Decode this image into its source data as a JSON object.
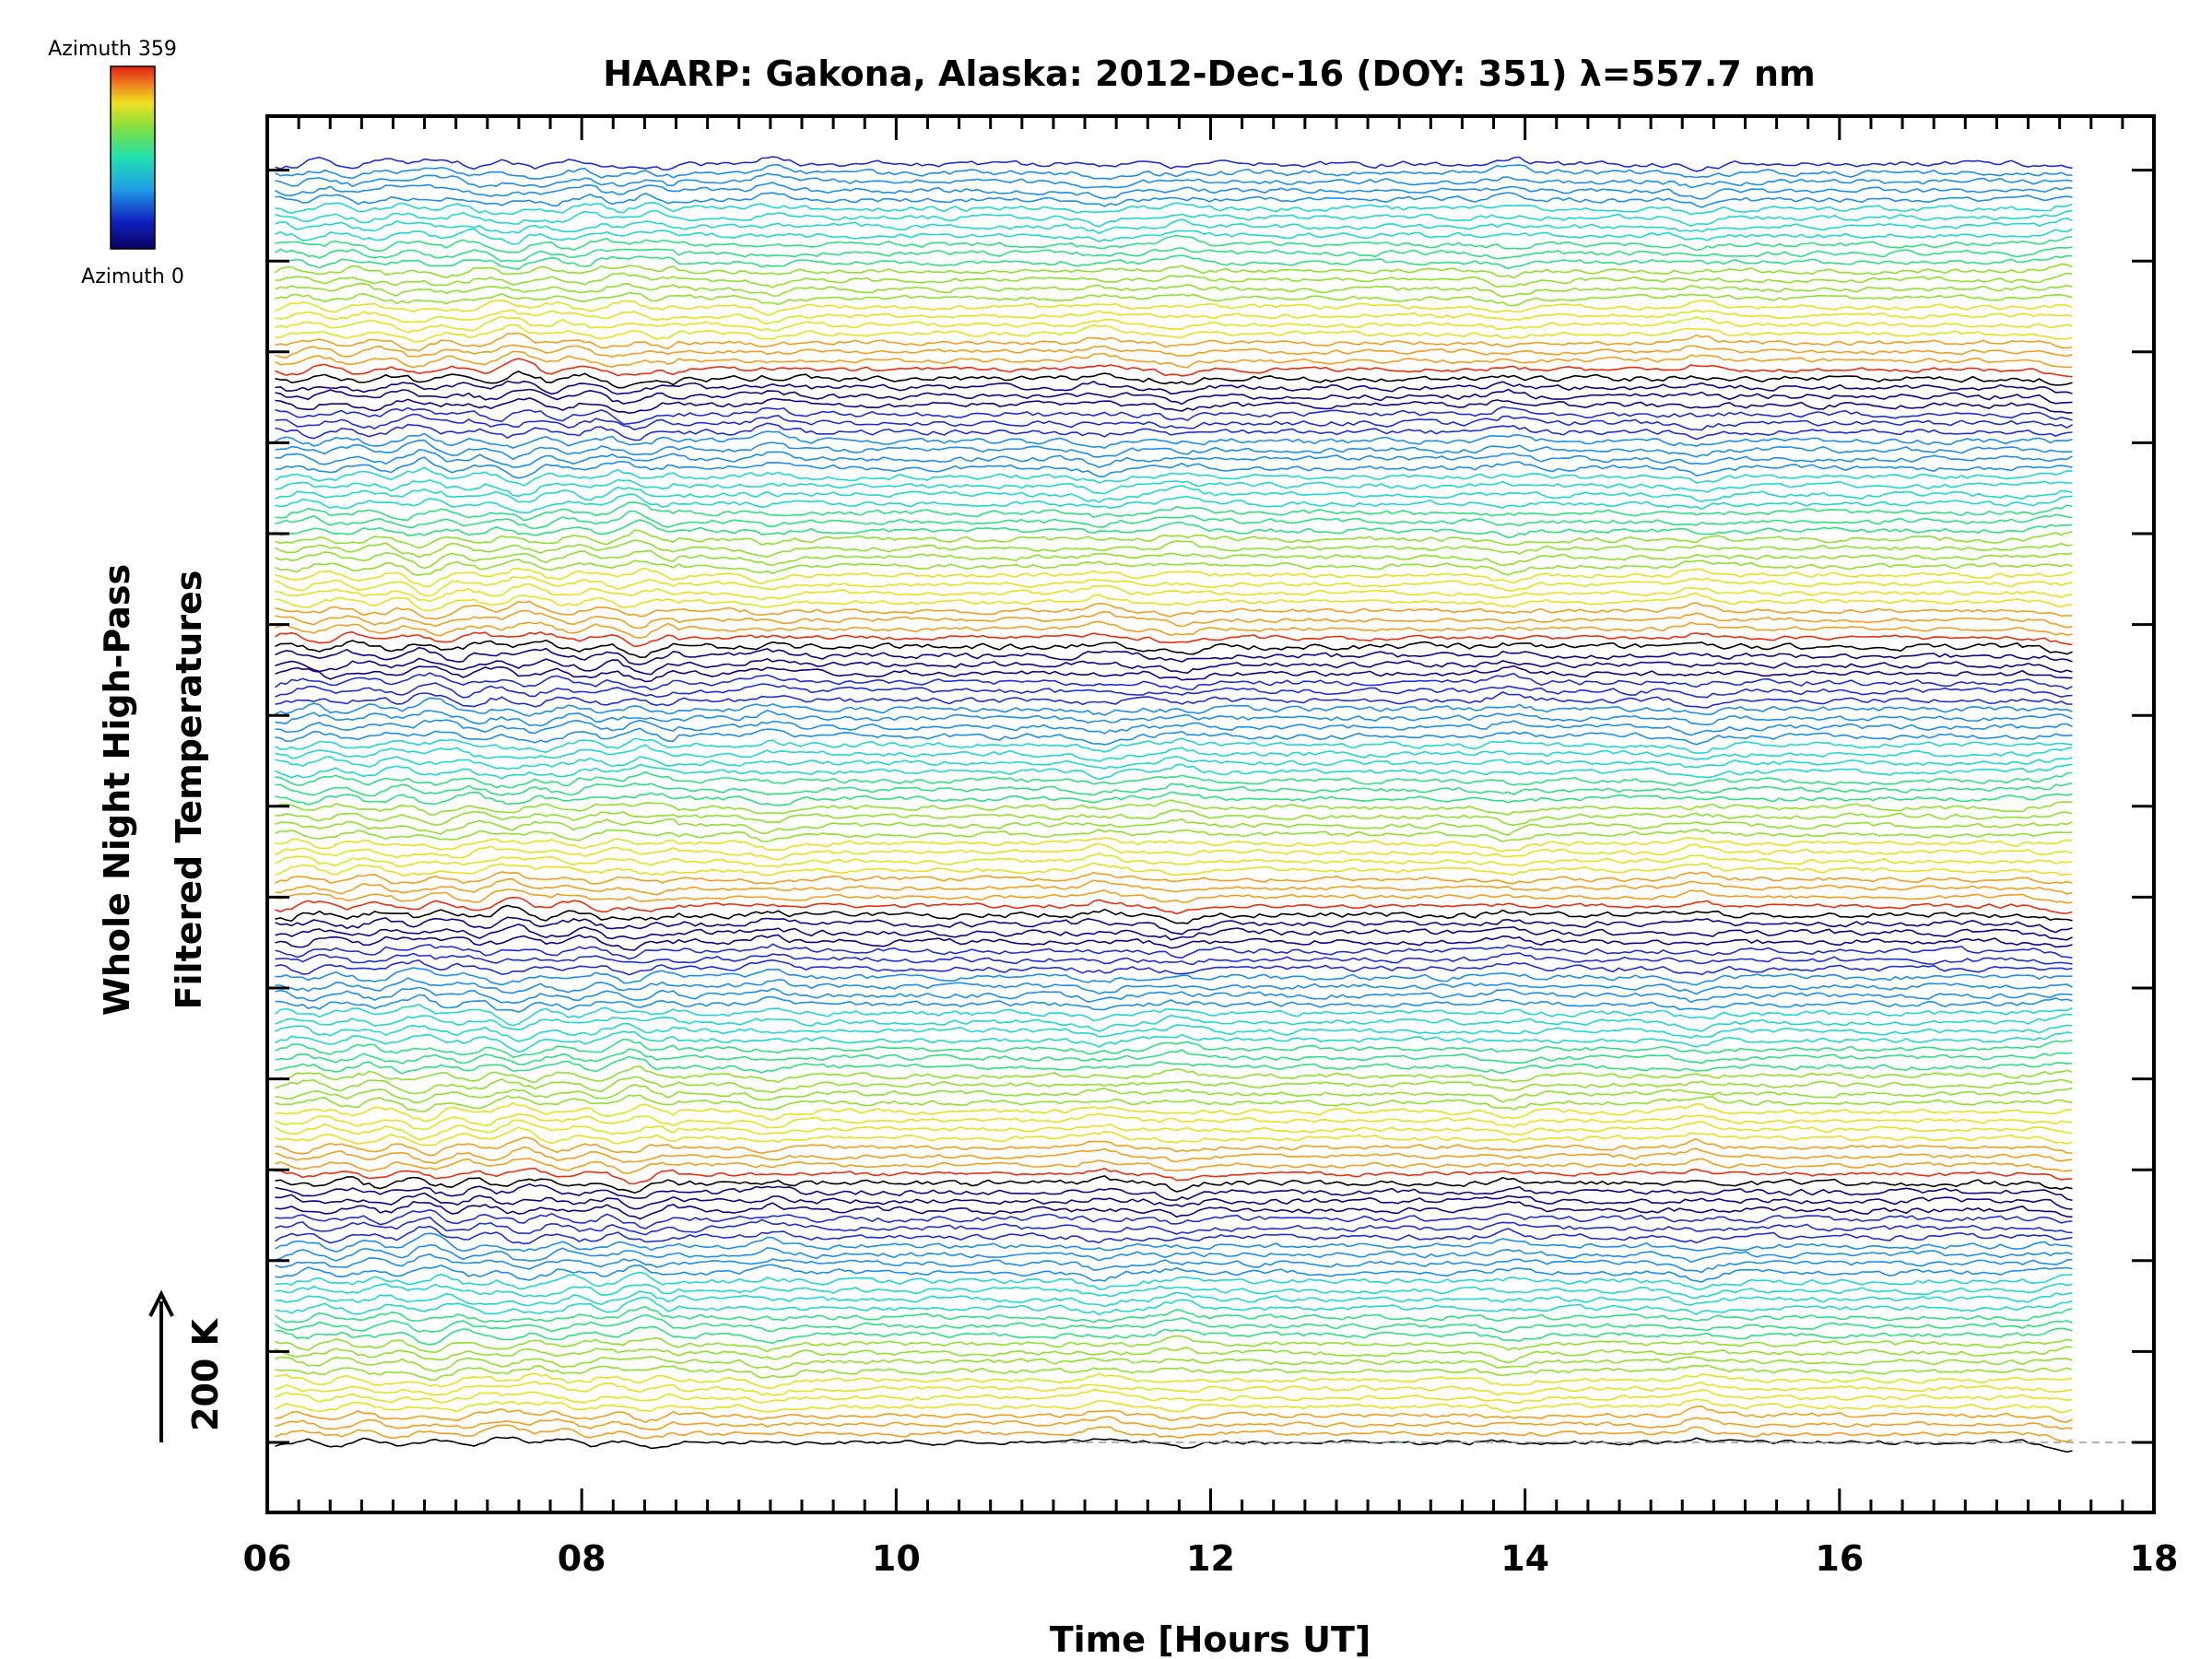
{
  "chart_data": {
    "type": "line",
    "title": "HAARP: Gakona,  Alaska: 2012-Dec-16 (DOY: 351) λ=557.7 nm",
    "xlabel": "Time [Hours UT]",
    "ylabel_line1": "Whole Night High-Pass",
    "ylabel_line2": "Filtered Temperatures",
    "scale_label": "200 K",
    "xlim": [
      6,
      18
    ],
    "x_ticks": [
      "06",
      "08",
      "10",
      "12",
      "14",
      "16",
      "18"
    ],
    "x_data_range": [
      6.05,
      17.5
    ],
    "n_traces": 144,
    "azimuth_cycle": 30,
    "n_y_ticks": 15,
    "colorbar": {
      "top_label": "Azimuth 359",
      "bottom_label": "Azimuth 0"
    },
    "colors": [
      "#000000",
      "#1a0080",
      "#2030d0",
      "#1e8fe6",
      "#20d8d0",
      "#30e080",
      "#90e030",
      "#e8e020",
      "#f0a020",
      "#e83010"
    ],
    "feature_times": [
      7.0,
      7.6,
      8.35,
      9.2,
      11.3,
      11.8,
      13.9,
      15.1,
      17.45
    ]
  }
}
